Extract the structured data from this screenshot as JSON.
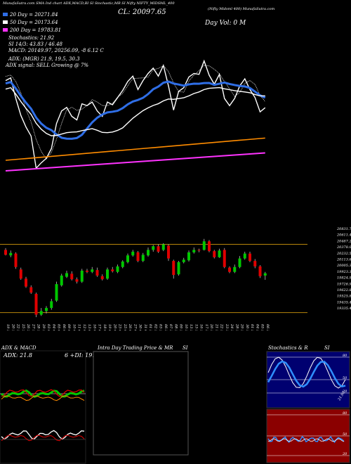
{
  "header": {
    "top_strip": "MunafaSutra.com SMA Ind chart ADX,MACD,BI SI Stochastic,MR SI Nifty NIFTY_MIDSML_400",
    "watermark": "(Nifty Midsml 400) MunafaSutra.com",
    "close_label": "CL: 20097.65",
    "day_label": "Day Vol: 0   M",
    "sma_lines": [
      {
        "label": "20 Day = 20271.84",
        "color": "#2f6ee6"
      },
      {
        "label": "50 Day = 20173.64",
        "color": "#ffffff"
      },
      {
        "label": "200 Day = 19783.81",
        "color": "#ff33ff"
      }
    ],
    "stochastics": "Stochastics: 21.92",
    "si_line": "SI 14/3: 43.83 / 46.48",
    "macd_line": "MACD: 20149.97, 20256.09, -8        6.12  C",
    "adx_line": "ADX:                          (MGR) 21.9, 19.5, 30.3",
    "signal_line": "ADX  signal: SELL Growing @ 7%"
  },
  "price_axis": {
    "ticks": [
      "20831.71",
      "20611.4",
      "20487.2",
      "20378.00",
      "20232.57",
      "20113.65",
      "20005.34",
      "19923.36",
      "19824.90",
      "19726.91",
      "19622.86",
      "19525.85",
      "19435.45",
      "19335.45"
    ]
  },
  "x_axis": {
    "dates": [
      "19 Sep",
      "20 Sep",
      "22 Sep",
      "25 Sep",
      "26 Sep",
      "27 Sep",
      "28 Sep",
      "29 Sep",
      "03 Oct",
      "04 Oct",
      "05 Oct",
      "06 Oct",
      "09 Oct",
      "10 Oct",
      "11 Oct",
      "12 Oct",
      "13 Oct",
      "16 Oct",
      "17 Oct",
      "18 Oct",
      "19 Oct",
      "20 Oct",
      "23 Oct",
      "25 Oct",
      "26 Oct",
      "27 Oct",
      "30 Oct",
      "31 Oct",
      "01 Nov",
      "02 Nov",
      "03 Nov",
      "06 Nov",
      "07 Nov",
      "08 Nov",
      "09 Nov",
      "10 Nov",
      "13 Nov",
      "15 Nov",
      "16 Nov",
      "17 Nov",
      "20 Nov",
      "21 Nov",
      "22 Nov",
      "23 Nov",
      "24 Nov",
      "28 Nov",
      "29 Nov",
      "30 Nov",
      "01 Dec",
      "04 Dec",
      "05 Dec",
      "06 Dec"
    ]
  },
  "panels": {
    "adx_title": "ADX  & MACD",
    "adx_value": "ADX: 21.8",
    "adx_dis": "6   +DI: 19.",
    "mr_title": "Intra  Day Trading Price  & MR",
    "mr_si": "SI",
    "stoch_title": "Stochastics & R",
    "stoch_si": "SI",
    "stoch_ticks": [
      "80",
      "50",
      "20"
    ],
    "stoch_last": "21.92",
    "mr_ticks": [
      "80",
      "50",
      "20"
    ]
  },
  "chart_data": {
    "type": "candlestick",
    "colors": {
      "up": "#00c800",
      "down": "#e00000",
      "sma20": "#2f6ee6",
      "sma50": "#ffffff",
      "sma200": "#ff33ff",
      "ema": "#ff8c00",
      "channel": "#b8860b"
    },
    "ylim": [
      19335,
      20830
    ],
    "channel_levels": [
      20571,
      19455
    ],
    "candles": [
      {
        "o": 20480,
        "c": 20400,
        "h": 20510,
        "l": 20390
      },
      {
        "o": 20390,
        "c": 20430,
        "h": 20470,
        "l": 20360
      },
      {
        "o": 20420,
        "c": 20200,
        "h": 20440,
        "l": 20170
      },
      {
        "o": 20160,
        "c": 20010,
        "h": 20190,
        "l": 19990
      },
      {
        "o": 20010,
        "c": 19880,
        "h": 20040,
        "l": 19860
      },
      {
        "o": 19870,
        "c": 19780,
        "h": 19900,
        "l": 19760
      },
      {
        "o": 19760,
        "c": 19420,
        "h": 19780,
        "l": 19380
      },
      {
        "o": 19420,
        "c": 19480,
        "h": 19530,
        "l": 19400
      },
      {
        "o": 19480,
        "c": 19530,
        "h": 19560,
        "l": 19440
      },
      {
        "o": 19530,
        "c": 19640,
        "h": 19680,
        "l": 19500
      },
      {
        "o": 19650,
        "c": 19920,
        "h": 19960,
        "l": 19630
      },
      {
        "o": 19900,
        "c": 20060,
        "h": 20090,
        "l": 19880
      },
      {
        "o": 20040,
        "c": 20100,
        "h": 20140,
        "l": 20020
      },
      {
        "o": 20090,
        "c": 20000,
        "h": 20130,
        "l": 19980
      },
      {
        "o": 20000,
        "c": 19960,
        "h": 20030,
        "l": 19930
      },
      {
        "o": 19960,
        "c": 20140,
        "h": 20170,
        "l": 19940
      },
      {
        "o": 20140,
        "c": 20120,
        "h": 20170,
        "l": 20100
      },
      {
        "o": 20120,
        "c": 20160,
        "h": 20200,
        "l": 20100
      },
      {
        "o": 20150,
        "c": 20060,
        "h": 20190,
        "l": 20040
      },
      {
        "o": 20050,
        "c": 20000,
        "h": 20080,
        "l": 19980
      },
      {
        "o": 20010,
        "c": 20160,
        "h": 20190,
        "l": 19990
      },
      {
        "o": 20160,
        "c": 20130,
        "h": 20200,
        "l": 20110
      },
      {
        "o": 20120,
        "c": 20210,
        "h": 20240,
        "l": 20100
      },
      {
        "o": 20200,
        "c": 20290,
        "h": 20310,
        "l": 20180
      },
      {
        "o": 20280,
        "c": 20390,
        "h": 20420,
        "l": 20260
      },
      {
        "o": 20390,
        "c": 20450,
        "h": 20480,
        "l": 20370
      },
      {
        "o": 20440,
        "c": 20300,
        "h": 20460,
        "l": 20280
      },
      {
        "o": 20300,
        "c": 20400,
        "h": 20430,
        "l": 20280
      },
      {
        "o": 20390,
        "c": 20480,
        "h": 20520,
        "l": 20370
      },
      {
        "o": 20480,
        "c": 20540,
        "h": 20560,
        "l": 20450
      },
      {
        "o": 20540,
        "c": 20450,
        "h": 20570,
        "l": 20430
      },
      {
        "o": 20480,
        "c": 20570,
        "h": 20590,
        "l": 20460
      },
      {
        "o": 20550,
        "c": 20340,
        "h": 20570,
        "l": 20300
      },
      {
        "o": 20300,
        "c": 20070,
        "h": 20320,
        "l": 20010
      },
      {
        "o": 20080,
        "c": 20280,
        "h": 20300,
        "l": 20060
      },
      {
        "o": 20280,
        "c": 20320,
        "h": 20350,
        "l": 20260
      },
      {
        "o": 20310,
        "c": 20440,
        "h": 20470,
        "l": 20290
      },
      {
        "o": 20440,
        "c": 20480,
        "h": 20520,
        "l": 20420
      },
      {
        "o": 20480,
        "c": 20470,
        "h": 20500,
        "l": 20440
      },
      {
        "o": 20480,
        "c": 20620,
        "h": 20660,
        "l": 20470
      },
      {
        "o": 20620,
        "c": 20460,
        "h": 20640,
        "l": 20440
      },
      {
        "o": 20460,
        "c": 20360,
        "h": 20480,
        "l": 20340
      },
      {
        "o": 20360,
        "c": 20470,
        "h": 20500,
        "l": 20350
      },
      {
        "o": 20480,
        "c": 20200,
        "h": 20510,
        "l": 20180
      },
      {
        "o": 20190,
        "c": 20120,
        "h": 20210,
        "l": 20100
      },
      {
        "o": 20120,
        "c": 20200,
        "h": 20240,
        "l": 20100
      },
      {
        "o": 20200,
        "c": 20340,
        "h": 20380,
        "l": 20180
      },
      {
        "o": 20340,
        "c": 20420,
        "h": 20450,
        "l": 20320
      },
      {
        "o": 20420,
        "c": 20300,
        "h": 20450,
        "l": 20280
      },
      {
        "o": 20300,
        "c": 20210,
        "h": 20330,
        "l": 20180
      },
      {
        "o": 20210,
        "c": 20050,
        "h": 20230,
        "l": 20020
      },
      {
        "o": 20060,
        "c": 20097,
        "h": 20120,
        "l": 19990
      }
    ]
  }
}
